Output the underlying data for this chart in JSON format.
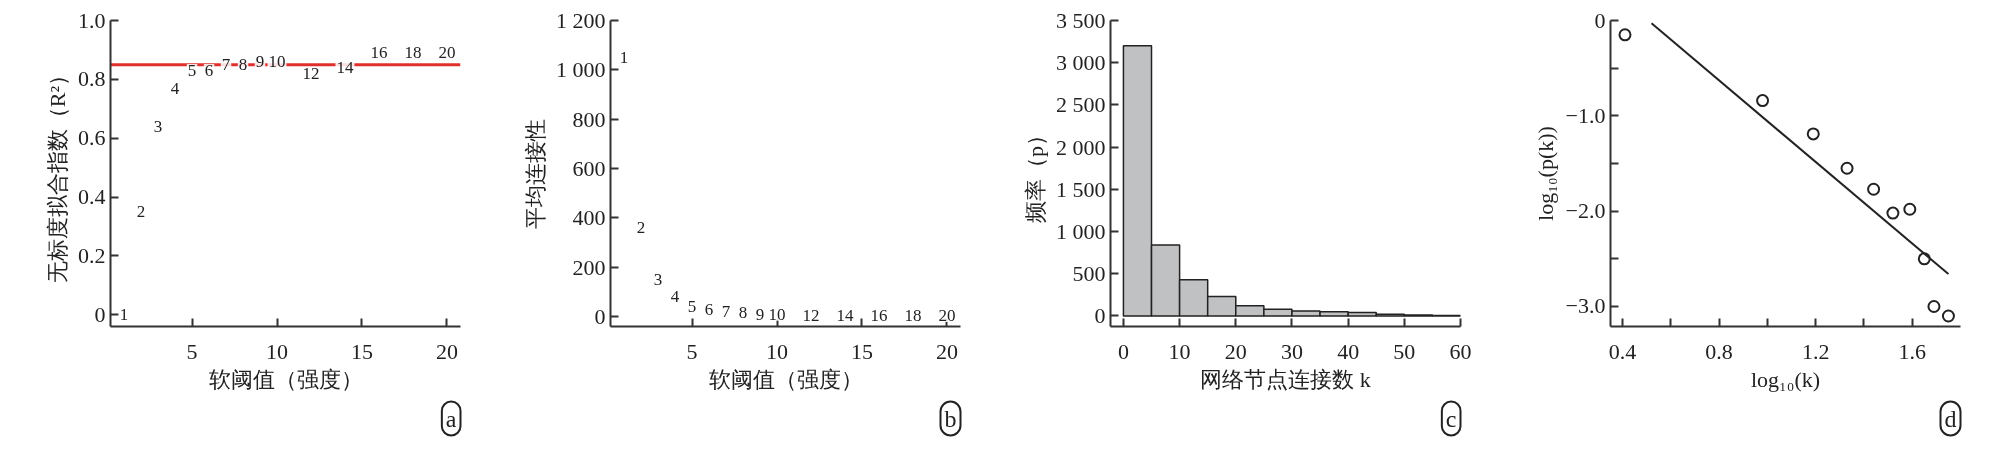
{
  "chart_data": [
    {
      "type": "scatter",
      "xlabel": "软阈值（强度）",
      "ylabel": "无标度拟合指数（R²）",
      "xlim": [
        0.2,
        20.8
      ],
      "ylim": [
        -0.04,
        1.0
      ],
      "xticks": [
        5,
        10,
        15,
        20
      ],
      "yticks": [
        {
          "value": 0,
          "label": "0"
        },
        {
          "value": 0.2,
          "label": "0.2"
        },
        {
          "value": 0.4,
          "label": "0.4"
        },
        {
          "value": 0.6,
          "label": "0.6"
        },
        {
          "value": 0.8,
          "label": "0.8"
        },
        {
          "value": 1.0,
          "label": "1.0"
        }
      ],
      "ref_lines": [
        {
          "axis": "y",
          "value": 0.85,
          "color": "#e0302e"
        }
      ],
      "annotations": [
        "a",
        {
          "text": "1",
          "x": 1,
          "y": 0.0
        },
        {
          "text": "2",
          "x": 2,
          "y": 0.35
        },
        {
          "text": "3",
          "x": 3,
          "y": 0.64
        },
        {
          "text": "4",
          "x": 4,
          "y": 0.77
        },
        {
          "text": "5",
          "x": 5,
          "y": 0.83
        },
        {
          "text": "6",
          "x": 6,
          "y": 0.83
        },
        {
          "text": "7",
          "x": 7,
          "y": 0.85
        },
        {
          "text": "8",
          "x": 8,
          "y": 0.85
        },
        {
          "text": "9",
          "x": 9,
          "y": 0.86
        },
        {
          "text": "10",
          "x": 10,
          "y": 0.86
        },
        {
          "text": "12",
          "x": 12,
          "y": 0.82
        },
        {
          "text": "14",
          "x": 14,
          "y": 0.84
        },
        {
          "text": "16",
          "x": 16,
          "y": 0.89
        },
        {
          "text": "18",
          "x": 18,
          "y": 0.89
        },
        {
          "text": "20",
          "x": 20,
          "y": 0.89
        }
      ]
    },
    {
      "type": "scatter",
      "xlabel": "软阈值（强度）",
      "ylabel": "平均连接性",
      "xlim": [
        0.2,
        20.8
      ],
      "ylim": [
        -40,
        1200
      ],
      "xticks": [
        5,
        10,
        15,
        20
      ],
      "yticks": [
        0,
        200,
        400,
        600,
        800,
        {
          "value": 1000,
          "label": "1 000"
        },
        {
          "value": 1200,
          "label": "1 200"
        }
      ],
      "annotations": [
        "b",
        {
          "text": "1",
          "x": 1,
          "y": 1050
        },
        {
          "text": "2",
          "x": 2,
          "y": 360
        },
        {
          "text": "3",
          "x": 3,
          "y": 150
        },
        {
          "text": "4",
          "x": 4,
          "y": 80
        },
        {
          "text": "5",
          "x": 5,
          "y": 40
        },
        {
          "text": "6",
          "x": 6,
          "y": 30
        },
        {
          "text": "7",
          "x": 7,
          "y": 20
        },
        {
          "text": "8",
          "x": 8,
          "y": 15
        },
        {
          "text": "9",
          "x": 9,
          "y": 10
        },
        {
          "text": "10",
          "x": 10,
          "y": 10
        },
        {
          "text": "12",
          "x": 12,
          "y": 5
        },
        {
          "text": "14",
          "x": 14,
          "y": 5
        },
        {
          "text": "16",
          "x": 16,
          "y": 5
        },
        {
          "text": "18",
          "x": 18,
          "y": 5
        },
        {
          "text": "20",
          "x": 20,
          "y": 5
        }
      ]
    },
    {
      "type": "histogram",
      "xlabel": "网络节点连接数 k",
      "ylabel": "频率（p）",
      "xlim": [
        -2.3,
        60
      ],
      "ylim": [
        -125,
        3500
      ],
      "xticks": [
        0,
        10,
        20,
        30,
        40,
        50,
        60
      ],
      "yticks": [
        0,
        500,
        {
          "value": 1000,
          "label": "1 000"
        },
        {
          "value": 1500,
          "label": "1 500"
        },
        {
          "value": 2000,
          "label": "2 000"
        },
        {
          "value": 2500,
          "label": "2 500"
        },
        {
          "value": 3000,
          "label": "3 000"
        },
        {
          "value": 3500,
          "label": "3 500"
        }
      ],
      "color": "#c0c1c3",
      "bins": [
        0,
        5,
        10,
        15,
        20,
        25,
        30,
        35,
        40,
        45,
        50,
        55,
        60
      ],
      "values": [
        3200,
        840,
        430,
        230,
        120,
        80,
        60,
        50,
        40,
        20,
        10,
        5
      ],
      "annotations": [
        "c"
      ]
    },
    {
      "type": "scatter",
      "xlabel": "log₁₀(k)",
      "ylabel": "log₁₀(p(k))",
      "xlim": [
        0.35,
        1.8
      ],
      "ylim": [
        -3.21,
        0
      ],
      "xticks": [
        0.4,
        {
          "value": 0.6,
          "label": null
        },
        0.8,
        {
          "value": 1.0,
          "label": null
        },
        1.2,
        {
          "value": 1.4,
          "label": null
        },
        1.6
      ],
      "yticks": [
        {
          "value": -3.0,
          "label": "−3.0"
        },
        {
          "value": -2.5,
          "label": null
        },
        {
          "value": -2.0,
          "label": "−2.0"
        },
        {
          "value": -1.5,
          "label": null
        },
        {
          "value": -1.0,
          "label": "−1.0"
        },
        {
          "value": -0.5,
          "label": null
        },
        {
          "value": 0,
          "label": "0"
        }
      ],
      "series": [
        {
          "color": "#222222",
          "marker": "circle",
          "x": [
            0.41,
            0.98,
            1.19,
            1.33,
            1.44,
            1.52,
            1.59,
            1.65,
            1.69,
            1.75
          ],
          "values": [
            -0.15,
            -0.84,
            -1.19,
            -1.55,
            -1.77,
            -2.02,
            -1.98,
            -2.5,
            -3.0,
            -3.1
          ]
        },
        {
          "type": "line",
          "color": "#222222",
          "x": [
            0.52,
            1.75
          ],
          "values": [
            -0.03,
            -2.66
          ]
        }
      ],
      "annotations": [
        "d"
      ]
    }
  ]
}
